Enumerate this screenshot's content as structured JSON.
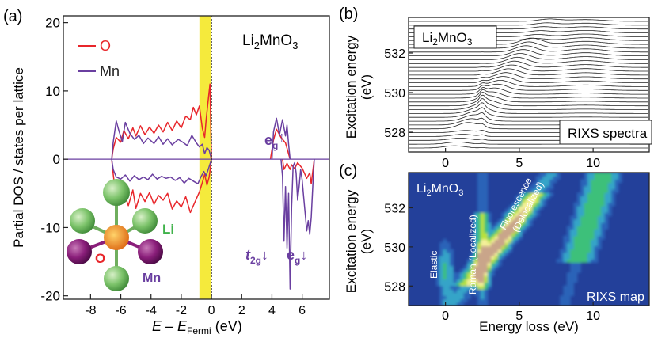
{
  "chart_data": [
    {
      "panel_label": "(a)",
      "type": "line",
      "title": "Li2MnO3",
      "xlabel": "E – E",
      "xlabel_sub": "Fermi",
      "xlabel_unit": " (eV)",
      "ylabel": "Partial DOS / states per lattice",
      "xlim": [
        -9.8,
        7.8
      ],
      "ylim": [
        -20.5,
        21
      ],
      "xticks": [
        -8,
        -6,
        -4,
        -2,
        0,
        2,
        4,
        6
      ],
      "xtick_labels": [
        "-8",
        "-6",
        "-4",
        "-2",
        "0",
        "2",
        "4",
        "6"
      ],
      "yticks": [
        -20,
        -10,
        0,
        10,
        20
      ],
      "ytick_labels": [
        "-20",
        "-10",
        "0",
        "10",
        "20"
      ],
      "highlight_band": [
        -0.8,
        0
      ],
      "highlight_color": "#f5ea3c",
      "legend_position": "top-left",
      "series": [
        {
          "name": "O",
          "color": "#e8262b",
          "up_x": [
            -6.6,
            -6.5,
            -6.3,
            -6.0,
            -5.8,
            -5.5,
            -5.2,
            -5.0,
            -4.7,
            -4.4,
            -4.1,
            -3.8,
            -3.5,
            -3.2,
            -2.9,
            -2.6,
            -2.3,
            -2.0,
            -1.7,
            -1.4,
            -1.2,
            -1.0,
            -0.8,
            -0.6,
            -0.45,
            -0.35,
            -0.2,
            -0.1,
            0.0
          ],
          "up_y": [
            0,
            1.5,
            3.2,
            2.5,
            4.2,
            3.0,
            4.6,
            3.4,
            4.9,
            3.6,
            4.7,
            3.8,
            5.0,
            4.0,
            5.4,
            4.2,
            5.6,
            4.6,
            6.3,
            5.8,
            7.6,
            6.5,
            7.8,
            4.5,
            3.2,
            5.8,
            9.0,
            11.0,
            0
          ],
          "dn_x": [
            -6.6,
            -6.5,
            -6.3,
            -6.0,
            -5.8,
            -5.5,
            -5.2,
            -5.0,
            -4.7,
            -4.4,
            -4.1,
            -3.8,
            -3.5,
            -3.2,
            -2.9,
            -2.6,
            -2.3,
            -2.0,
            -1.7,
            -1.4,
            -1.2,
            -1.0,
            -0.8,
            -0.6,
            -0.45,
            -0.3,
            -0.15,
            0.0
          ],
          "dn_y": [
            0,
            -2.2,
            -5.8,
            -6.5,
            -4.8,
            -6.8,
            -4.5,
            -7.2,
            -5.0,
            -6.2,
            -4.9,
            -6.6,
            -5.3,
            -6.0,
            -5.0,
            -7.3,
            -6.1,
            -7.0,
            -5.5,
            -7.8,
            -6.8,
            -5.8,
            -4.8,
            -3.4,
            -2.2,
            -3.8,
            -2.6,
            0
          ],
          "cond_x": [],
          "cond_y": []
        },
        {
          "name": "Mn",
          "color": "#6a3fa0",
          "up_x": [
            -6.6,
            -6.5,
            -6.3,
            -6.1,
            -5.9,
            -5.7,
            -5.4,
            -5.1,
            -4.8,
            -4.5,
            -4.2,
            -3.8,
            -3.5,
            -3.2,
            -2.9,
            -2.6,
            -2.2,
            -1.9,
            -1.6,
            -1.3,
            -1.0,
            -0.8,
            -0.6,
            -0.45,
            -0.3,
            -0.15,
            0.0
          ],
          "up_y": [
            0,
            2.5,
            5.6,
            4.0,
            2.6,
            5.4,
            3.8,
            2.9,
            3.5,
            2.3,
            3.1,
            2.3,
            3.3,
            2.2,
            3.0,
            2.1,
            2.9,
            2.5,
            2.0,
            3.5,
            2.4,
            1.8,
            2.2,
            0.8,
            1.7,
            1.3,
            0
          ],
          "dn_x": [
            -6.6,
            -6.5,
            -6.3,
            -6.0,
            -5.7,
            -5.4,
            -5.1,
            -4.8,
            -4.5,
            -4.2,
            -3.9,
            -3.6,
            -3.3,
            -3.0,
            -2.7,
            -2.4,
            -2.1,
            -1.8,
            -1.5,
            -1.2,
            -0.9,
            -0.7,
            -0.5,
            -0.35,
            -0.2,
            0.0
          ],
          "dn_y": [
            0,
            -1.5,
            -2.6,
            -2.9,
            -2.3,
            -3.2,
            -2.4,
            -3.0,
            -2.6,
            -3.0,
            -2.2,
            -2.9,
            -2.5,
            -2.8,
            -2.6,
            -3.1,
            -2.7,
            -3.5,
            -2.8,
            -3.2,
            -3.6,
            -2.6,
            -1.8,
            -2.4,
            -1.4,
            0
          ],
          "cond_x": [
            4.0,
            4.1,
            4.3,
            4.5,
            4.7,
            4.9,
            5.0,
            5.1,
            5.2
          ],
          "cond_y": [
            0,
            4.0,
            6.0,
            3.6,
            5.8,
            3.4,
            5.0,
            2.2,
            0
          ],
          "cond_dn_x": [
            4.6,
            4.7,
            4.8,
            4.9,
            5.0,
            5.1,
            5.2,
            5.3,
            5.4,
            5.5,
            5.6,
            5.7,
            5.8,
            5.9,
            6.0,
            6.1,
            6.2,
            6.3,
            6.4,
            6.5,
            6.6,
            6.7,
            6.8
          ],
          "cond_dn_y": [
            0,
            -2.5,
            -12.0,
            -4.0,
            -13.0,
            -5.0,
            -19.0,
            -7.0,
            -1.0,
            -0.5,
            -2.0,
            -6.0,
            -4.0,
            -1.5,
            -3.0,
            -5.5,
            -8.0,
            -10.5,
            -9.0,
            -11.0,
            -8.5,
            -4.0,
            0
          ]
        }
      ],
      "cond_o_dn_x": [
        4.7,
        4.8,
        5.0,
        5.2,
        5.3,
        5.5,
        5.7,
        6.0,
        6.3,
        6.5,
        6.6,
        6.8
      ],
      "cond_o_dn_y": [
        0,
        -1.5,
        -0.6,
        -1.5,
        -0.8,
        -1.4,
        -0.5,
        -1.3,
        -2.8,
        -2.0,
        -3.6,
        0
      ],
      "cond_o_up_x": [
        3.9,
        4.1,
        4.3,
        4.6,
        4.9,
        5.2
      ],
      "cond_o_up_y": [
        0,
        2.8,
        4.4,
        3.2,
        2.4,
        0
      ],
      "annotations": [
        "e",
        "g",
        "↑",
        "t",
        "2g",
        "↓",
        "e",
        "g",
        "↓"
      ],
      "inset_labels": [
        "Li",
        "O",
        "Mn"
      ]
    },
    {
      "panel_label": "(b)",
      "type": "line",
      "title": "Li2MnO3",
      "corner_label": "RIXS spectra",
      "ylabel": "Excitation energy",
      "ylabel_unit": "(eV)",
      "xlim": [
        -2.5,
        13.8
      ],
      "xticks": [
        0,
        5,
        10
      ],
      "xtick_labels": [
        "0",
        "5",
        "10"
      ],
      "ylim": [
        527.0,
        533.8
      ],
      "yticks": [
        528,
        530,
        532
      ],
      "ytick_labels": [
        "528",
        "530",
        "532"
      ],
      "series": [
        {
          "excitation_start": 527.2,
          "excitation_end": 533.6,
          "count": 34
        }
      ]
    },
    {
      "panel_label": "(c)",
      "type": "heatmap",
      "title": "Li2MnO3",
      "corner_label": "RIXS map",
      "xlabel": "Energy loss (eV)",
      "ylabel": "Excitation energy",
      "ylabel_unit": "(eV)",
      "xlim": [
        -2.5,
        13.8
      ],
      "xticks": [
        0,
        5,
        10
      ],
      "xtick_labels": [
        "0",
        "5",
        "10"
      ],
      "ylim": [
        527.0,
        533.8
      ],
      "yticks": [
        528,
        530,
        532
      ],
      "ytick_labels": [
        "528",
        "530",
        "532"
      ],
      "colormap": [
        "#1f3a8a",
        "#2c64b8",
        "#35a4c8",
        "#3cc07a",
        "#b9e23a",
        "#f4f09a",
        "#c9a58a",
        "#7a3a2a"
      ],
      "background_color": "#23409a",
      "labels": {
        "elastic": "Elastic",
        "raman": "Raman (Localized)",
        "fluorescence_1": "Fluorescence",
        "fluorescence_2": "(Delocalized)"
      }
    }
  ]
}
